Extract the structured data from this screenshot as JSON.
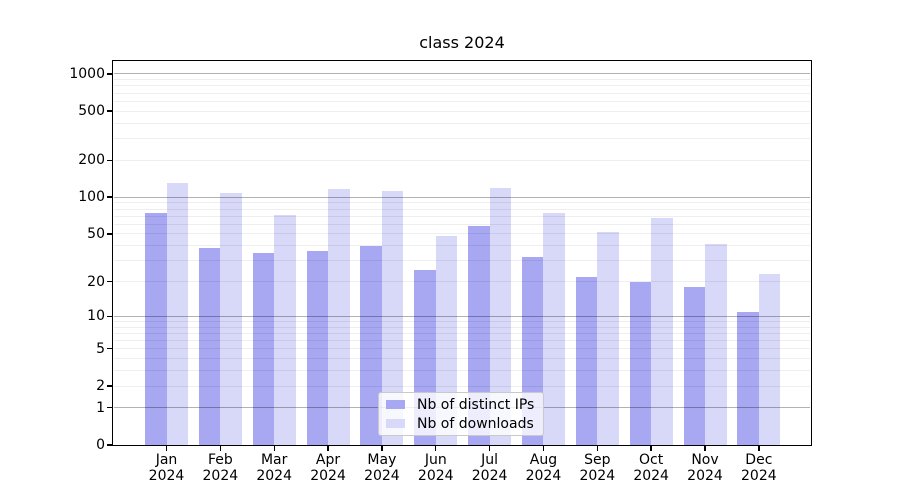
{
  "title": "class 2024",
  "chart_data": {
    "type": "bar",
    "title": "class 2024",
    "months": [
      "Jan",
      "Feb",
      "Mar",
      "Apr",
      "May",
      "Jun",
      "Jul",
      "Aug",
      "Sep",
      "Oct",
      "Nov",
      "Dec"
    ],
    "year_label": "2024",
    "series": [
      {
        "name": "Nb of distinct IPs",
        "color": "#a7a7f2",
        "values": [
          74,
          38,
          35,
          36,
          40,
          25,
          58,
          32,
          22,
          20,
          18,
          11
        ]
      },
      {
        "name": "Nb of downloads",
        "color": "#d8d8f8",
        "values": [
          130,
          109,
          72,
          116,
          112,
          48,
          119,
          74,
          52,
          68,
          41,
          23
        ]
      }
    ],
    "yscale": "log1p",
    "ylim": [
      0,
      1270
    ],
    "y_ticks": [
      0,
      1,
      2,
      5,
      10,
      20,
      50,
      100,
      200,
      500,
      1000
    ],
    "y_major_gridlines": [
      1,
      10,
      100,
      1000
    ],
    "y_minor_gridlines": [
      2,
      3,
      4,
      5,
      6,
      7,
      8,
      9,
      20,
      30,
      40,
      50,
      60,
      70,
      80,
      90,
      200,
      300,
      400,
      500,
      600,
      700,
      800,
      900
    ],
    "grid": true,
    "legend": {
      "position": "lower center"
    }
  }
}
